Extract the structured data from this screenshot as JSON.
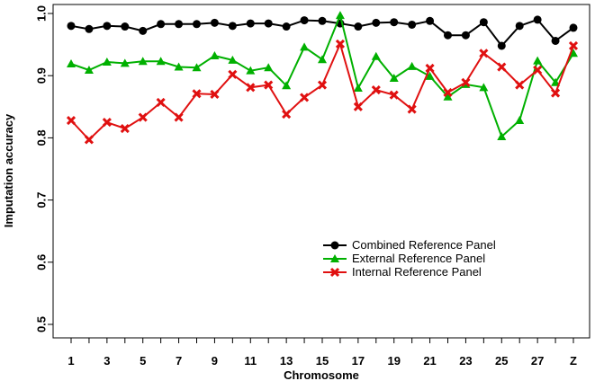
{
  "chart_data": {
    "type": "line",
    "xlabel": "Chromosome",
    "ylabel": "Imputation accuracy",
    "ylim": [
      0.45,
      1.02
    ],
    "yticks": [
      "0.5",
      "0.6",
      "0.7",
      "0.8",
      "0.9",
      "1.0"
    ],
    "categories": [
      "1",
      "2",
      "3",
      "4",
      "5",
      "6",
      "7",
      "8",
      "9",
      "10",
      "11",
      "12",
      "13",
      "14",
      "15",
      "16",
      "17",
      "18",
      "19",
      "20",
      "21",
      "22",
      "23",
      "24",
      "25",
      "26",
      "27",
      "28",
      "Z"
    ],
    "xtick_labels_shown": [
      "1",
      "3",
      "5",
      "7",
      "9",
      "11",
      "13",
      "15",
      "17",
      "19",
      "21",
      "23",
      "25",
      "27",
      "Z"
    ],
    "legend_position": "center-right",
    "series": [
      {
        "name": "Combined Reference Panel",
        "color": "#000000",
        "marker": "circle",
        "values": [
          0.98,
          0.975,
          0.98,
          0.979,
          0.972,
          0.983,
          0.983,
          0.983,
          0.985,
          0.98,
          0.984,
          0.984,
          0.979,
          0.989,
          0.988,
          0.984,
          0.979,
          0.985,
          0.986,
          0.982,
          0.988,
          0.965,
          0.965,
          0.986,
          0.948,
          0.98,
          0.99,
          0.956,
          0.977
        ]
      },
      {
        "name": "External Reference Panel",
        "color": "#00b000",
        "marker": "triangle",
        "values": [
          0.919,
          0.909,
          0.922,
          0.92,
          0.923,
          0.923,
          0.914,
          0.913,
          0.932,
          0.925,
          0.908,
          0.913,
          0.884,
          0.946,
          0.926,
          0.997,
          0.88,
          0.931,
          0.896,
          0.915,
          0.899,
          0.866,
          0.886,
          0.881,
          0.802,
          0.828,
          0.924,
          0.889,
          0.936
        ]
      },
      {
        "name": "Internal Reference Panel",
        "color": "#e01010",
        "marker": "x",
        "values": [
          0.828,
          0.797,
          0.825,
          0.815,
          0.833,
          0.857,
          0.833,
          0.871,
          0.87,
          0.902,
          0.881,
          0.885,
          0.838,
          0.865,
          0.885,
          0.951,
          0.85,
          0.877,
          0.869,
          0.846,
          0.912,
          0.873,
          0.889,
          0.936,
          0.914,
          0.885,
          0.909,
          0.872,
          0.948
        ]
      }
    ]
  }
}
